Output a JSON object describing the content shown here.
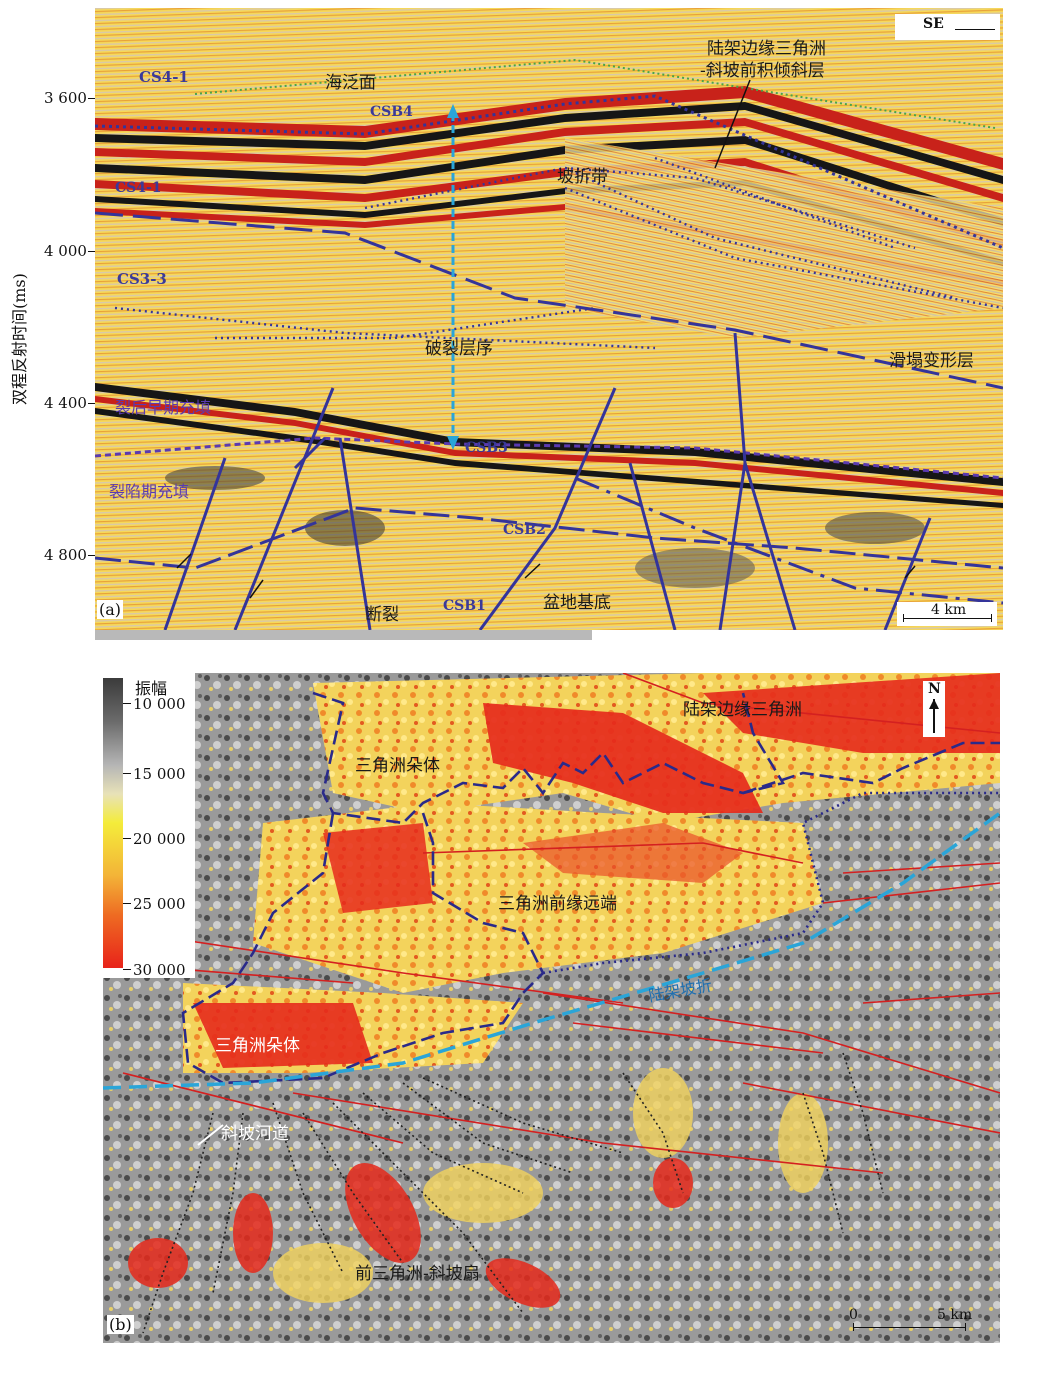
{
  "panel_a": {
    "y_axis_label": "双程反射时间(ms)",
    "y_ticks": [
      "3 600",
      "4 000",
      "4 400",
      "4 800"
    ],
    "direction": "SE",
    "panel_label": "(a)",
    "scale_bar": "4 km",
    "labels": {
      "cs4_1": "CS4-1",
      "sea_level": "海泛面",
      "shelf_delta_1": "陆架边缘三角洲",
      "shelf_delta_2": "-斜坡前积倾斜层",
      "csb4": "CSB4",
      "cs4_1_b": "CS4-1",
      "slope_break": "坡折带",
      "cs3_3": "CS3-3",
      "breakup": "破裂层序",
      "slump": "滑塌变形层",
      "rift_late": "裂后早期充填",
      "csb3": "CSB3",
      "rift_fill": "裂陷期充填",
      "csb2": "CSB2",
      "fault": "断裂",
      "csb1": "CSB1",
      "basement": "盆地基底"
    }
  },
  "panel_b": {
    "legend_title": "振幅",
    "legend_ticks": [
      "10 000",
      "15 000",
      "20 000",
      "25 000",
      "30 000"
    ],
    "panel_label": "(b)",
    "north": "N",
    "scale_zero": "0",
    "scale_bar": "5 km",
    "labels": {
      "shelf_delta": "陆架边缘三角洲",
      "lobe_1": "三角洲朵体",
      "front_distal": "三角洲前缘远端",
      "lobe_2": "三角洲朵体",
      "shelf_break": "陆架坡折",
      "slope_channel": "斜坡河道",
      "prodelta_fan": "前三角洲-斜坡扇"
    }
  },
  "colors": {
    "seismic_yellow": "#f7dc5c",
    "seismic_red": "#d92a1f",
    "seismic_black": "#1a1a1a",
    "horizon_blue": "#34349a",
    "shelf_break_cyan": "#2aa5d8",
    "amp_dark": "#3d3d3d",
    "amp_red": "#e8231a"
  }
}
